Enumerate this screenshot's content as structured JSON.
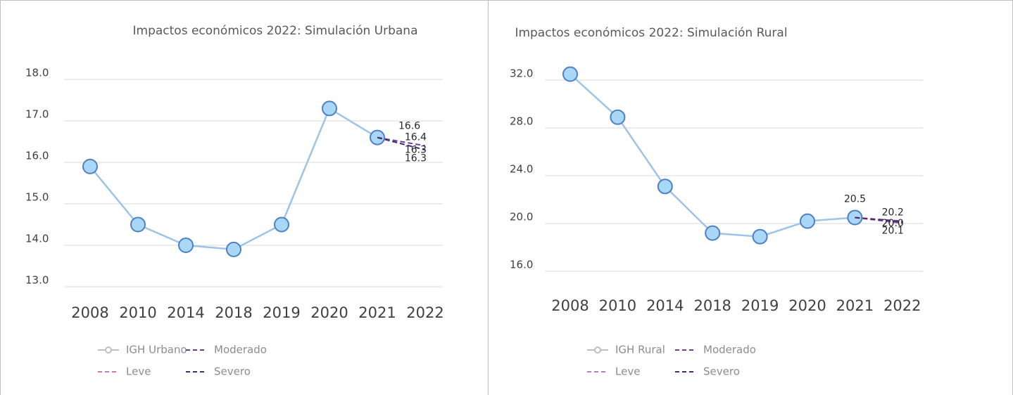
{
  "chart_data": [
    {
      "type": "line",
      "title": "Impactos económicos 2022:  Simulación Urbana",
      "categories": [
        "2008",
        "2010",
        "2014",
        "2018",
        "2019",
        "2020",
        "2021",
        "2022"
      ],
      "ylim": [
        13,
        18
      ],
      "yticks": [
        {
          "value": 13,
          "label": "13.0"
        },
        {
          "value": 14,
          "label": "14.0"
        },
        {
          "value": 15,
          "label": "15.0"
        },
        {
          "value": 16,
          "label": "16.0"
        },
        {
          "value": 17,
          "label": "17.0"
        },
        {
          "value": 18,
          "label": "18.0"
        }
      ],
      "grid": true,
      "series": [
        {
          "name": "IGH Urbano",
          "color": "#9dc3e6",
          "values": [
            15.9,
            14.5,
            14.0,
            13.9,
            14.5,
            17.3,
            16.6,
            null
          ],
          "value_labels": [
            null,
            null,
            null,
            null,
            null,
            null,
            "16.6",
            null
          ]
        },
        {
          "name": "Moderado",
          "color": "#6a3d8f",
          "values": [
            null,
            null,
            null,
            null,
            null,
            null,
            16.6,
            16.4
          ],
          "value_labels": [
            null,
            null,
            null,
            null,
            null,
            null,
            null,
            "16.4"
          ]
        },
        {
          "name": "Leve",
          "color": "#c17bbd",
          "values": [
            null,
            null,
            null,
            null,
            null,
            null,
            16.6,
            16.3
          ],
          "value_labels": [
            null,
            null,
            null,
            null,
            null,
            null,
            null,
            "16.3"
          ]
        },
        {
          "name": "Severo",
          "color": "#4a2a6e",
          "values": [
            null,
            null,
            null,
            null,
            null,
            null,
            16.6,
            16.3
          ],
          "value_labels": [
            null,
            null,
            null,
            null,
            null,
            null,
            null,
            "16.3"
          ]
        }
      ]
    },
    {
      "type": "line",
      "title": "Impactos económicos 2022: Simulación Rural",
      "categories": [
        "2008",
        "2010",
        "2014",
        "2018",
        "2019",
        "2020",
        "2021",
        "2022"
      ],
      "ylim": [
        16,
        32
      ],
      "yticks": [
        {
          "value": 16,
          "label": "16.0"
        },
        {
          "value": 20,
          "label": "20.0"
        },
        {
          "value": 24,
          "label": "24.0"
        },
        {
          "value": 28,
          "label": "28.0"
        },
        {
          "value": 32,
          "label": "32.0"
        }
      ],
      "grid": true,
      "series": [
        {
          "name": "IGH Rural",
          "color": "#9dc3e6",
          "values": [
            32.5,
            28.9,
            23.1,
            19.2,
            18.9,
            20.2,
            20.5,
            null
          ],
          "value_labels": [
            null,
            null,
            null,
            null,
            null,
            null,
            "20.5",
            null
          ]
        },
        {
          "name": "Moderado",
          "color": "#6a3d8f",
          "values": [
            null,
            null,
            null,
            null,
            null,
            null,
            20.5,
            20.2
          ],
          "value_labels": [
            null,
            null,
            null,
            null,
            null,
            null,
            null,
            "20.2"
          ]
        },
        {
          "name": "Leve",
          "color": "#c17bbd",
          "values": [
            null,
            null,
            null,
            null,
            null,
            null,
            20.5,
            20.0
          ],
          "value_labels": [
            null,
            null,
            null,
            null,
            null,
            null,
            null,
            "20.0"
          ]
        },
        {
          "name": "Severo",
          "color": "#4a2a6e",
          "values": [
            null,
            null,
            null,
            null,
            null,
            null,
            20.5,
            20.1
          ],
          "value_labels": [
            null,
            null,
            null,
            null,
            null,
            null,
            null,
            "20.1"
          ]
        }
      ]
    }
  ]
}
